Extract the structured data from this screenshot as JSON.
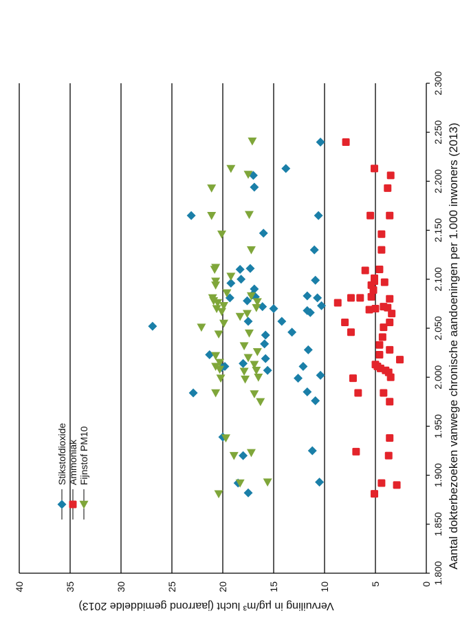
{
  "chart_data": {
    "type": "scatter",
    "xlabel": "Aantal dokterbezoeken vanwege chronische aandoeningen per 1.000 inwoners (2013)",
    "ylabel": "Vervuiling in µg/m³ lucht (jaarrond gemiddelde 2013)",
    "xlim": [
      1800,
      2300
    ],
    "ylim": [
      0,
      40
    ],
    "x_ticks": [
      "1.800",
      "1.850",
      "1.900",
      "1.950",
      "2.000",
      "2.050",
      "2.100",
      "2.150",
      "2.200",
      "2.250",
      "2.300"
    ],
    "y_ticks": [
      "0",
      "5",
      "10",
      "15",
      "20",
      "25",
      "30",
      "35",
      "40"
    ],
    "grid": true,
    "legend_position": "top-left",
    "series": [
      {
        "name": "Stikstofdioxide",
        "color": "#1a7fa8",
        "marker": "diamond",
        "points": [
          [
            1882,
            17.5
          ],
          [
            1892,
            18.5
          ],
          [
            1893,
            10.5
          ],
          [
            1920,
            18.0
          ],
          [
            1925,
            11.2
          ],
          [
            1939,
            20.0
          ],
          [
            1976,
            10.9
          ],
          [
            1984,
            22.9
          ],
          [
            1985,
            11.7
          ],
          [
            1999,
            12.6
          ],
          [
            2002,
            10.4
          ],
          [
            2007,
            15.6
          ],
          [
            2010,
            20.1
          ],
          [
            2011,
            12.1
          ],
          [
            2011,
            19.8
          ],
          [
            2014,
            18.0
          ],
          [
            2019,
            15.8
          ],
          [
            2023,
            21.3
          ],
          [
            2028,
            11.6
          ],
          [
            2034,
            15.9
          ],
          [
            2043,
            15.8
          ],
          [
            2046,
            13.2
          ],
          [
            2052,
            26.9
          ],
          [
            2057,
            14.2
          ],
          [
            2057,
            17.5
          ],
          [
            2066,
            11.4
          ],
          [
            2068,
            11.7
          ],
          [
            2070,
            15.0
          ],
          [
            2072,
            16.1
          ],
          [
            2073,
            10.3
          ],
          [
            2078,
            17.6
          ],
          [
            2081,
            19.3
          ],
          [
            2081,
            10.7
          ],
          [
            2082,
            16.8
          ],
          [
            2083,
            11.7
          ],
          [
            2084,
            17.1
          ],
          [
            2090,
            16.9
          ],
          [
            2096,
            19.2
          ],
          [
            2099,
            10.9
          ],
          [
            2100,
            18.2
          ],
          [
            2110,
            18.3
          ],
          [
            2111,
            17.3
          ],
          [
            2130,
            11.0
          ],
          [
            2147,
            16.0
          ],
          [
            2165,
            23.1
          ],
          [
            2165,
            10.6
          ],
          [
            2194,
            16.9
          ],
          [
            2206,
            17.0
          ],
          [
            2213,
            13.8
          ],
          [
            2240,
            10.4
          ]
        ]
      },
      {
        "name": "Ammoniak",
        "color": "#e3242b",
        "marker": "square",
        "points": [
          [
            1881,
            5.1
          ],
          [
            1890,
            2.9
          ],
          [
            1892,
            4.4
          ],
          [
            1920,
            3.7
          ],
          [
            1924,
            6.9
          ],
          [
            1938,
            3.6
          ],
          [
            1975,
            3.6
          ],
          [
            1984,
            4.2
          ],
          [
            1984,
            6.7
          ],
          [
            1999,
            7.2
          ],
          [
            2000,
            3.5
          ],
          [
            2005,
            3.7
          ],
          [
            2007,
            4.0
          ],
          [
            2009,
            4.5
          ],
          [
            2011,
            4.8
          ],
          [
            2013,
            5.0
          ],
          [
            2018,
            2.6
          ],
          [
            2023,
            4.6
          ],
          [
            2028,
            3.6
          ],
          [
            2033,
            4.6
          ],
          [
            2041,
            4.3
          ],
          [
            2046,
            7.4
          ],
          [
            2051,
            4.2
          ],
          [
            2056,
            8.0
          ],
          [
            2056,
            3.6
          ],
          [
            2065,
            3.4
          ],
          [
            2069,
            5.6
          ],
          [
            2070,
            5.0
          ],
          [
            2071,
            3.8
          ],
          [
            2072,
            4.2
          ],
          [
            2076,
            8.7
          ],
          [
            2080,
            3.6
          ],
          [
            2081,
            7.4
          ],
          [
            2081,
            6.5
          ],
          [
            2082,
            5.4
          ],
          [
            2089,
            5.2
          ],
          [
            2094,
            5.4
          ],
          [
            2097,
            4.1
          ],
          [
            2098,
            5.1
          ],
          [
            2101,
            5.1
          ],
          [
            2109,
            6.0
          ],
          [
            2110,
            4.6
          ],
          [
            2130,
            4.4
          ],
          [
            2146,
            4.4
          ],
          [
            2165,
            5.5
          ],
          [
            2165,
            3.6
          ],
          [
            2193,
            3.8
          ],
          [
            2206,
            3.5
          ],
          [
            2213,
            5.1
          ],
          [
            2240,
            7.9
          ]
        ]
      },
      {
        "name": "Fijnstof PM10",
        "color": "#7fa63a",
        "marker": "triangle",
        "points": [
          [
            1881,
            20.4
          ],
          [
            1892,
            18.3
          ],
          [
            1893,
            15.6
          ],
          [
            1920,
            18.9
          ],
          [
            1923,
            17.2
          ],
          [
            1938,
            19.7
          ],
          [
            1975,
            16.3
          ],
          [
            1983,
            16.9
          ],
          [
            1984,
            20.7
          ],
          [
            1998,
            17.8
          ],
          [
            1999,
            20.2
          ],
          [
            2000,
            16.5
          ],
          [
            2006,
            17.9
          ],
          [
            2007,
            16.7
          ],
          [
            2008,
            20.3
          ],
          [
            2011,
            20.7
          ],
          [
            2013,
            16.9
          ],
          [
            2015,
            20.3
          ],
          [
            2020,
            17.5
          ],
          [
            2022,
            20.7
          ],
          [
            2026,
            16.6
          ],
          [
            2032,
            17.9
          ],
          [
            2044,
            20.4
          ],
          [
            2045,
            17.4
          ],
          [
            2051,
            22.1
          ],
          [
            2055,
            19.9
          ],
          [
            2062,
            18.3
          ],
          [
            2065,
            17.6
          ],
          [
            2067,
            20.1
          ],
          [
            2070,
            20.6
          ],
          [
            2071,
            16.7
          ],
          [
            2073,
            19.9
          ],
          [
            2076,
            20.5
          ],
          [
            2077,
            16.6
          ],
          [
            2078,
            20.9
          ],
          [
            2081,
            21.0
          ],
          [
            2083,
            17.2
          ],
          [
            2086,
            19.6
          ],
          [
            2094,
            20.7
          ],
          [
            2098,
            20.7
          ],
          [
            2103,
            19.2
          ],
          [
            2110,
            20.8
          ],
          [
            2112,
            20.7
          ],
          [
            2130,
            17.2
          ],
          [
            2146,
            20.1
          ],
          [
            2165,
            21.1
          ],
          [
            2166,
            17.4
          ],
          [
            2193,
            21.1
          ],
          [
            2207,
            17.5
          ],
          [
            2213,
            19.2
          ],
          [
            2241,
            17.1
          ]
        ]
      }
    ]
  }
}
